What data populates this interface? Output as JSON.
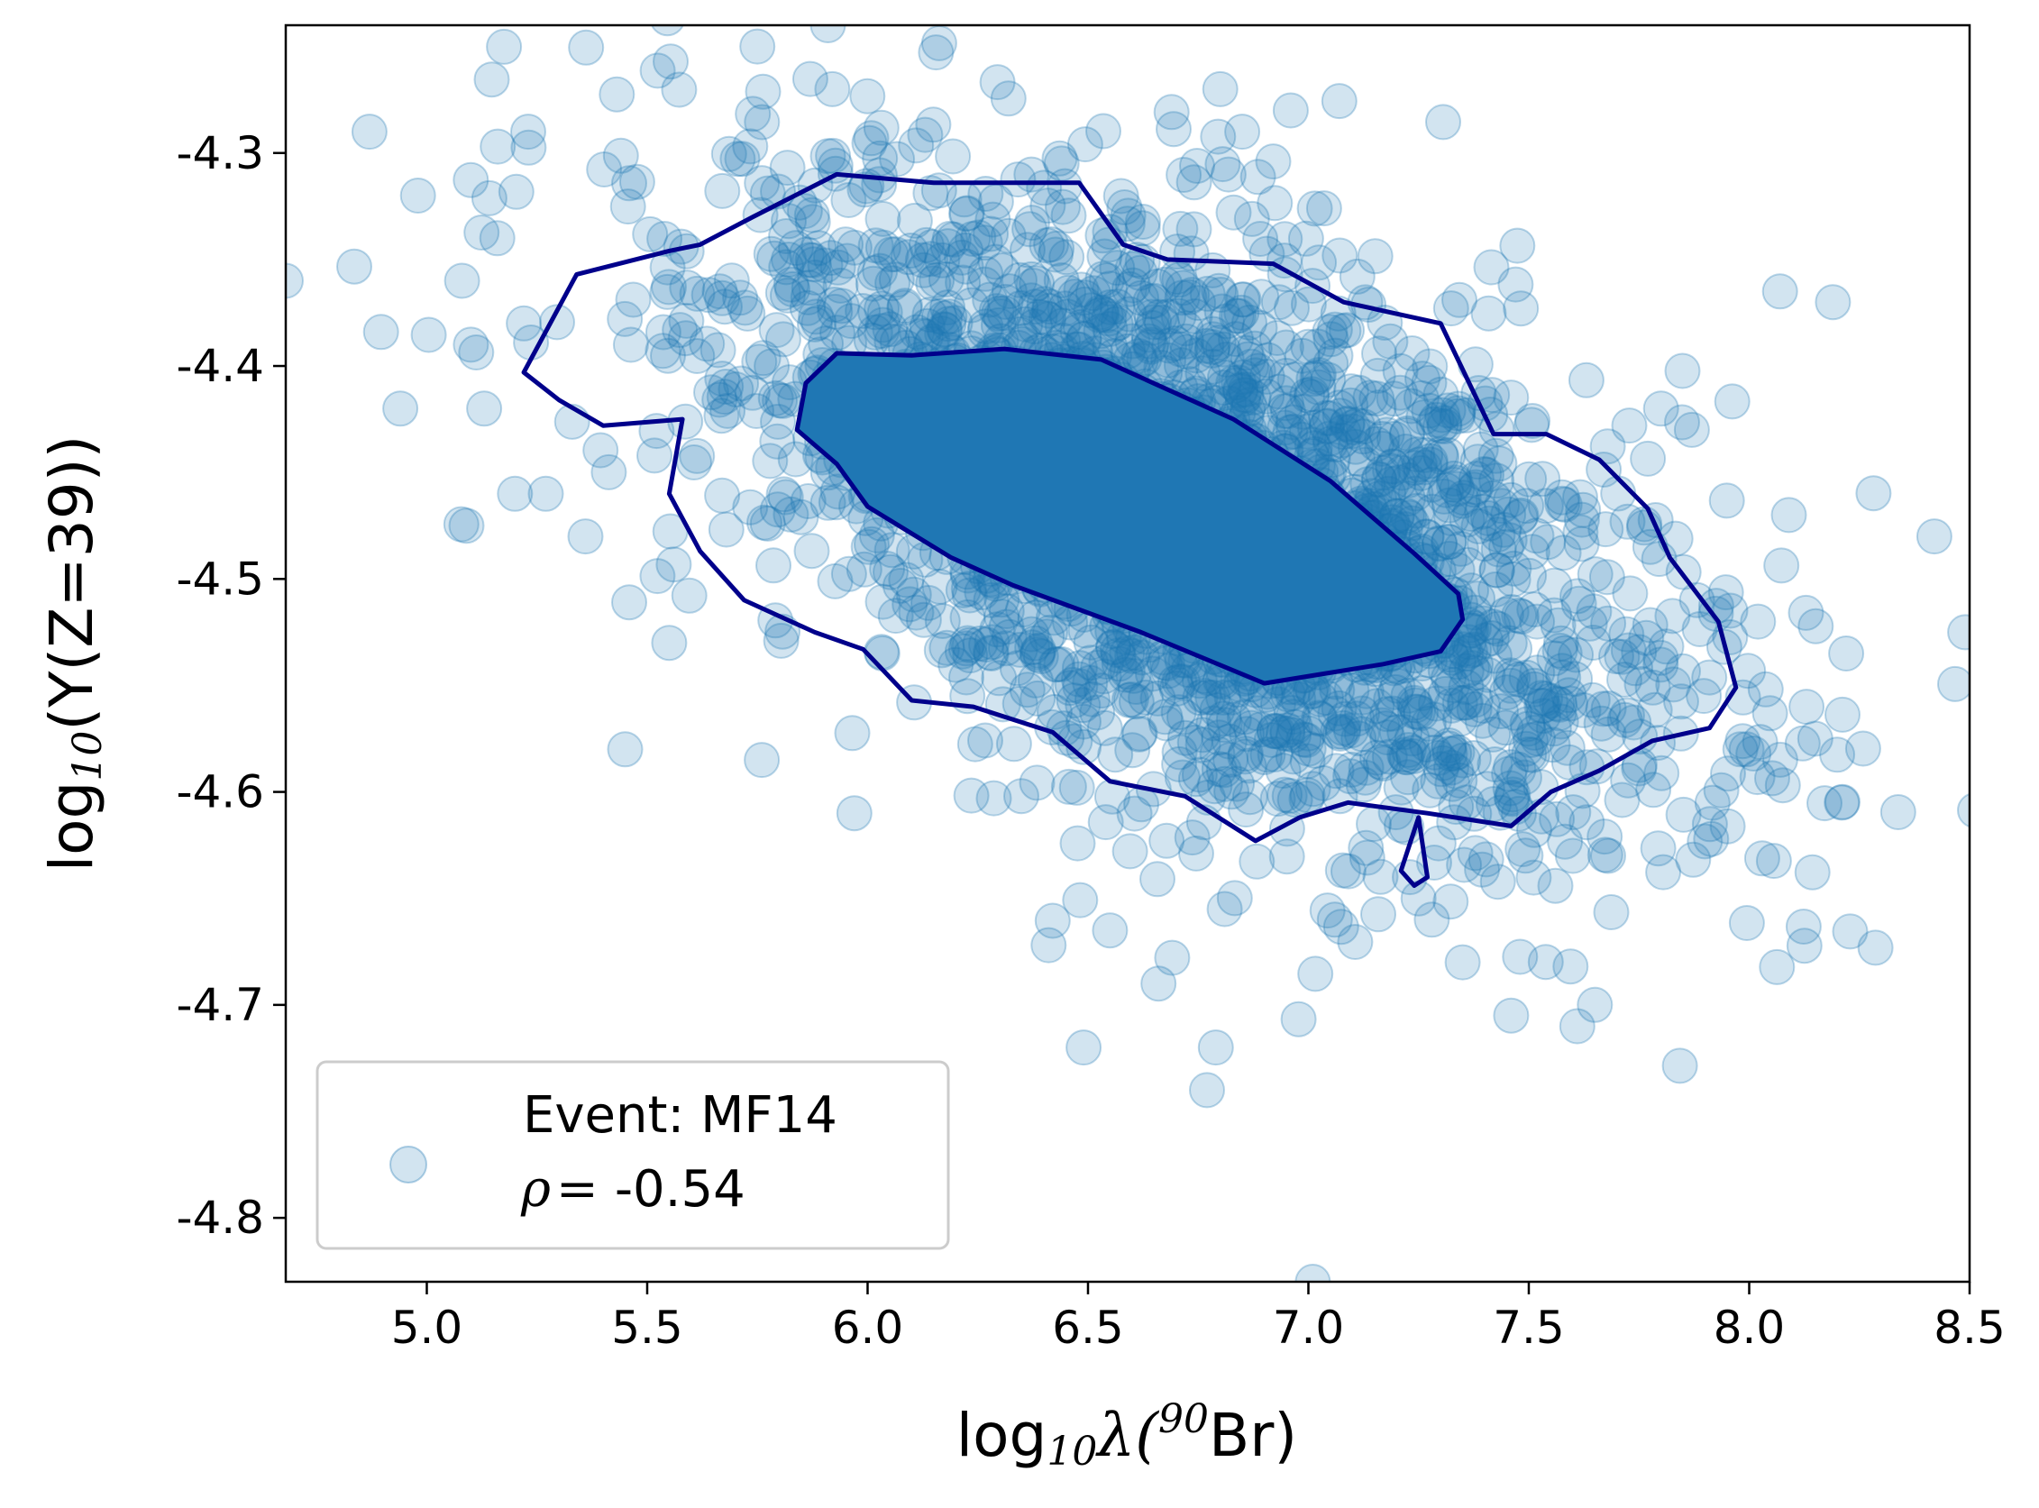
{
  "chart_data": {
    "type": "scatter",
    "title": "",
    "xlabel": {
      "prefix": "log",
      "sub": "10",
      "sym": "λ",
      "open": "(",
      "sup": "90",
      "rest": "Br)"
    },
    "ylabel": {
      "prefix": "log",
      "sub": "10",
      "rest": "(Y(Z=39))"
    },
    "xlim": [
      4.68,
      8.5
    ],
    "ylim": [
      -4.83,
      -4.24
    ],
    "xticks": [
      5.0,
      5.5,
      6.0,
      6.5,
      7.0,
      7.5,
      8.0,
      8.5
    ],
    "xtick_labels": [
      "5.0",
      "5.5",
      "6.0",
      "6.5",
      "7.0",
      "7.5",
      "8.0",
      "8.5"
    ],
    "yticks": [
      -4.3,
      -4.4,
      -4.5,
      -4.6,
      -4.7,
      -4.8
    ],
    "ytick_labels": [
      "-4.3",
      "-4.4",
      "-4.5",
      "-4.6",
      "-4.7",
      "-4.8"
    ],
    "grid": false,
    "marker_color": "#1f77b4",
    "marker_alpha": 0.2,
    "contour_color": "#00008b",
    "legend": {
      "placement": "lower-left",
      "event_label": "Event: MF14",
      "rho_symbol": "ρ",
      "rho_eq": "=",
      "rho_value": "-0.54"
    },
    "cloud": {
      "n_points": 2600,
      "center_x": 6.75,
      "center_y": -4.47,
      "std_x": 0.55,
      "std_y": 0.078,
      "correlation": -0.54,
      "seed": 14
    },
    "outliers": [
      [
        4.68,
        -4.36
      ],
      [
        4.87,
        -4.29
      ],
      [
        4.98,
        -4.32
      ],
      [
        5.08,
        -4.36
      ],
      [
        5.1,
        -4.39
      ],
      [
        5.13,
        -4.42
      ],
      [
        5.16,
        -4.34
      ],
      [
        5.2,
        -4.46
      ],
      [
        5.23,
        -4.29
      ],
      [
        5.22,
        -4.38
      ],
      [
        5.27,
        -4.46
      ],
      [
        4.94,
        -4.42
      ],
      [
        5.09,
        -4.475
      ],
      [
        5.36,
        -4.48
      ],
      [
        5.45,
        -4.58
      ],
      [
        5.55,
        -4.53
      ],
      [
        5.75,
        -4.25
      ],
      [
        5.76,
        -4.585
      ],
      [
        5.91,
        -4.24
      ],
      [
        5.92,
        -4.27
      ],
      [
        5.97,
        -4.61
      ],
      [
        6.49,
        -4.72
      ],
      [
        6.55,
        -4.665
      ],
      [
        6.66,
        -4.69
      ],
      [
        6.77,
        -4.74
      ],
      [
        6.79,
        -4.72
      ],
      [
        6.81,
        -4.655
      ],
      [
        6.8,
        -4.27
      ],
      [
        6.96,
        -4.28
      ],
      [
        6.85,
        -4.29
      ],
      [
        7.01,
        -4.83
      ],
      [
        7.06,
        -4.66
      ],
      [
        7.35,
        -4.68
      ],
      [
        7.46,
        -4.705
      ],
      [
        7.61,
        -4.71
      ],
      [
        7.65,
        -4.7
      ],
      [
        7.6,
        -4.63
      ],
      [
        8.07,
        -4.365
      ],
      [
        8.19,
        -4.37
      ],
      [
        8.09,
        -4.47
      ],
      [
        8.42,
        -4.48
      ],
      [
        8.49,
        -4.525
      ],
      [
        8.22,
        -4.535
      ],
      [
        8.13,
        -4.56
      ],
      [
        8.15,
        -4.575
      ],
      [
        8.21,
        -4.605
      ],
      [
        8.02,
        -4.52
      ],
      [
        7.98,
        -4.58
      ],
      [
        7.87,
        -4.43
      ],
      [
        7.8,
        -4.42
      ],
      [
        7.68,
        -4.63
      ],
      [
        7.23,
        -4.64
      ],
      [
        7.25,
        -4.65
      ],
      [
        7.28,
        -4.66
      ]
    ],
    "contours": [
      {
        "level": "outer",
        "points": [
          [
            5.22,
            -4.403
          ],
          [
            5.34,
            -4.357
          ],
          [
            5.55,
            -4.346
          ],
          [
            5.62,
            -4.343
          ],
          [
            5.74,
            -4.33
          ],
          [
            5.93,
            -4.31
          ],
          [
            6.15,
            -4.314
          ],
          [
            6.48,
            -4.314
          ],
          [
            6.58,
            -4.343
          ],
          [
            6.68,
            -4.35
          ],
          [
            6.92,
            -4.352
          ],
          [
            7.08,
            -4.37
          ],
          [
            7.3,
            -4.38
          ],
          [
            7.42,
            -4.432
          ],
          [
            7.54,
            -4.432
          ],
          [
            7.66,
            -4.444
          ],
          [
            7.77,
            -4.467
          ],
          [
            7.82,
            -4.49
          ],
          [
            7.93,
            -4.52
          ],
          [
            7.97,
            -4.551
          ],
          [
            7.91,
            -4.57
          ],
          [
            7.78,
            -4.576
          ],
          [
            7.66,
            -4.59
          ],
          [
            7.55,
            -4.6
          ],
          [
            7.46,
            -4.616
          ],
          [
            7.27,
            -4.61
          ],
          [
            7.09,
            -4.605
          ],
          [
            6.98,
            -4.612
          ],
          [
            6.88,
            -4.623
          ],
          [
            6.72,
            -4.602
          ],
          [
            6.55,
            -4.595
          ],
          [
            6.42,
            -4.572
          ],
          [
            6.24,
            -4.56
          ],
          [
            6.1,
            -4.557
          ],
          [
            5.99,
            -4.533
          ],
          [
            5.88,
            -4.525
          ],
          [
            5.72,
            -4.51
          ],
          [
            5.62,
            -4.487
          ],
          [
            5.55,
            -4.46
          ],
          [
            5.58,
            -4.425
          ],
          [
            5.4,
            -4.428
          ],
          [
            5.3,
            -4.416
          ],
          [
            5.22,
            -4.403
          ]
        ]
      },
      {
        "level": "spike",
        "points": [
          [
            7.25,
            -4.612
          ],
          [
            7.27,
            -4.64
          ],
          [
            7.24,
            -4.644
          ],
          [
            7.21,
            -4.637
          ],
          [
            7.25,
            -4.612
          ]
        ]
      },
      {
        "level": "inner",
        "points": [
          [
            5.86,
            -4.408
          ],
          [
            5.93,
            -4.394
          ],
          [
            6.1,
            -4.395
          ],
          [
            6.31,
            -4.392
          ],
          [
            6.53,
            -4.397
          ],
          [
            6.83,
            -4.425
          ],
          [
            7.05,
            -4.454
          ],
          [
            7.24,
            -4.488
          ],
          [
            7.34,
            -4.507
          ],
          [
            7.35,
            -4.519
          ],
          [
            7.3,
            -4.534
          ],
          [
            7.17,
            -4.54
          ],
          [
            7.02,
            -4.545
          ],
          [
            6.9,
            -4.549
          ],
          [
            6.62,
            -4.525
          ],
          [
            6.33,
            -4.503
          ],
          [
            6.19,
            -4.49
          ],
          [
            6.0,
            -4.466
          ],
          [
            5.93,
            -4.446
          ],
          [
            5.84,
            -4.43
          ],
          [
            5.86,
            -4.408
          ]
        ]
      }
    ]
  }
}
